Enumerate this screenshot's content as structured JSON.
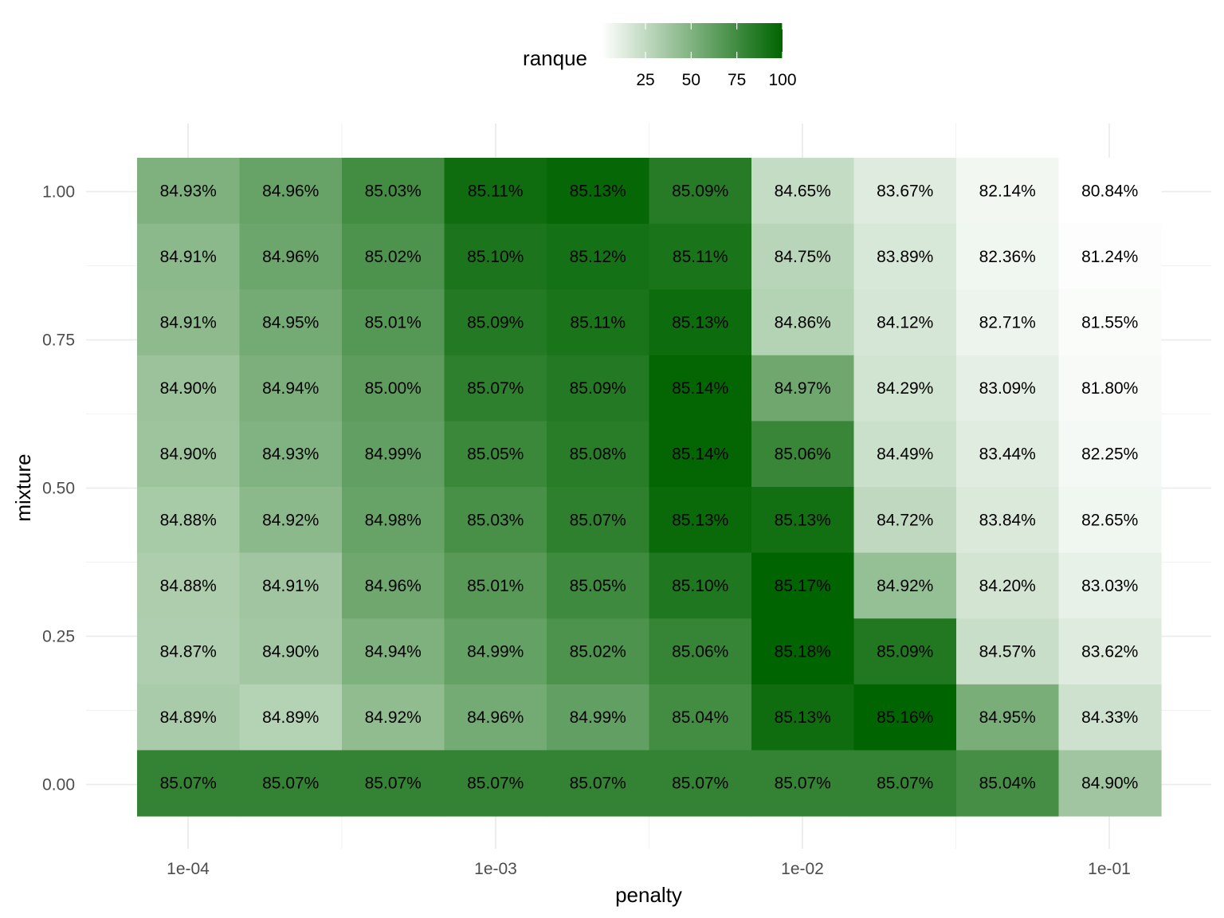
{
  "chart_data": {
    "type": "heatmap",
    "xlabel": "penalty",
    "ylabel": "mixture",
    "x_scale": "log10",
    "x_tick_labels": [
      "1e-04",
      "1e-03",
      "1e-02",
      "1e-01"
    ],
    "y_tick_labels": [
      "0.00",
      "0.25",
      "0.50",
      "0.75",
      "1.00"
    ],
    "y_range": [
      0,
      1
    ],
    "grid": true,
    "legend": {
      "title": "ranque",
      "position": "top",
      "ticks": [
        "25",
        "50",
        "75",
        "100"
      ],
      "range": [
        1,
        100
      ],
      "low_color": "#ffffff",
      "high_color": "#006400"
    },
    "rows": [
      {
        "mixture": 1.0,
        "labels": [
          "84.93%",
          "84.96%",
          "85.03%",
          "85.11%",
          "85.13%",
          "85.09%",
          "84.65%",
          "83.67%",
          "82.14%",
          "80.84%"
        ],
        "ranque": [
          51,
          60,
          74,
          94,
          98,
          85,
          24,
          14,
          6,
          1
        ]
      },
      {
        "mixture": 0.89,
        "labels": [
          "84.91%",
          "84.96%",
          "85.02%",
          "85.10%",
          "85.12%",
          "85.11%",
          "84.75%",
          "83.89%",
          "82.36%",
          "81.24%"
        ],
        "ranque": [
          46,
          58,
          70,
          89,
          92,
          90,
          28,
          16,
          7,
          2
        ]
      },
      {
        "mixture": 0.78,
        "labels": [
          "84.91%",
          "84.95%",
          "85.01%",
          "85.09%",
          "85.11%",
          "85.13%",
          "84.86%",
          "84.12%",
          "82.71%",
          "81.55%"
        ],
        "ranque": [
          45,
          55,
          67,
          86,
          90,
          95,
          30,
          17,
          8,
          3
        ]
      },
      {
        "mixture": 0.67,
        "labels": [
          "84.90%",
          "84.94%",
          "85.00%",
          "85.07%",
          "85.09%",
          "85.14%",
          "84.97%",
          "84.29%",
          "83.09%",
          "81.80%"
        ],
        "ranque": [
          40,
          52,
          64,
          82,
          86,
          99,
          57,
          19,
          11,
          4
        ]
      },
      {
        "mixture": 0.56,
        "labels": [
          "84.90%",
          "84.93%",
          "84.99%",
          "85.05%",
          "85.08%",
          "85.14%",
          "85.06%",
          "84.49%",
          "83.44%",
          "82.25%"
        ],
        "ranque": [
          39,
          50,
          62,
          77,
          84,
          99,
          78,
          21,
          13,
          5
        ]
      },
      {
        "mixture": 0.44,
        "labels": [
          "84.88%",
          "84.92%",
          "84.98%",
          "85.03%",
          "85.07%",
          "85.13%",
          "85.13%",
          "84.72%",
          "83.84%",
          "82.65%"
        ],
        "ranque": [
          35,
          46,
          60,
          72,
          82,
          96,
          93,
          26,
          15,
          7
        ]
      },
      {
        "mixture": 0.33,
        "labels": [
          "84.88%",
          "84.91%",
          "84.96%",
          "85.01%",
          "85.05%",
          "85.10%",
          "85.17%",
          "84.92%",
          "84.20%",
          "83.03%"
        ],
        "ranque": [
          33,
          38,
          57,
          66,
          76,
          88,
          100,
          42,
          18,
          10
        ]
      },
      {
        "mixture": 0.22,
        "labels": [
          "84.87%",
          "84.90%",
          "84.94%",
          "84.99%",
          "85.02%",
          "85.06%",
          "85.18%",
          "85.09%",
          "84.57%",
          "83.62%"
        ],
        "ranque": [
          32,
          37,
          51,
          61,
          70,
          79,
          100,
          87,
          22,
          14
        ]
      },
      {
        "mixture": 0.11,
        "labels": [
          "84.89%",
          "84.89%",
          "84.92%",
          "84.96%",
          "84.99%",
          "85.04%",
          "85.13%",
          "85.16%",
          "84.95%",
          "84.33%"
        ],
        "ranque": [
          34,
          30,
          44,
          55,
          62,
          74,
          94,
          100,
          53,
          20
        ]
      },
      {
        "mixture": 0.0,
        "labels": [
          "85.07%",
          "85.07%",
          "85.07%",
          "85.07%",
          "85.07%",
          "85.07%",
          "85.07%",
          "85.07%",
          "85.04%",
          "84.90%"
        ],
        "ranque": [
          80,
          80,
          80,
          80,
          80,
          80,
          80,
          80,
          73,
          38
        ]
      }
    ]
  }
}
